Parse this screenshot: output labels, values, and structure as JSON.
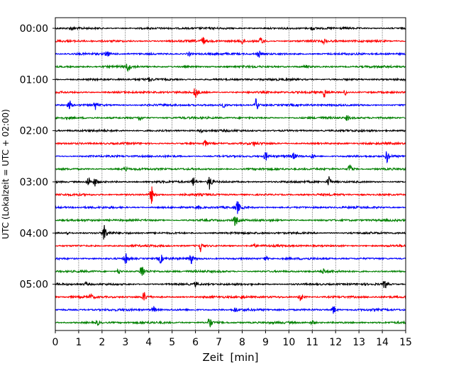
{
  "chart_data": {
    "type": "line",
    "title": "",
    "xlabel": "Zeit  [min]",
    "ylabel": "UTC (Lokalzeit = UTC + 02:00)",
    "xlim": [
      0,
      15
    ],
    "x_ticks": [
      "0",
      "1",
      "2",
      "3",
      "4",
      "5",
      "6",
      "7",
      "8",
      "9",
      "10",
      "11",
      "12",
      "13",
      "14",
      "15"
    ],
    "y_ticks": [
      "00:00",
      "01:00",
      "02:00",
      "03:00",
      "04:00",
      "05:00"
    ],
    "grid": "vertical dotted",
    "trace_interval_min": 15,
    "row_colors": [
      "#000000",
      "#ff0000",
      "#0000ff",
      "#008000"
    ],
    "series": [
      {
        "start": "00:00",
        "events": [
          [
            0.7,
            0.3
          ],
          [
            11.0,
            0.3
          ]
        ]
      },
      {
        "start": "00:15",
        "events": [
          [
            6.3,
            0.9
          ],
          [
            8.8,
            0.8
          ],
          [
            8.0,
            0.5
          ],
          [
            11.5,
            0.4
          ]
        ]
      },
      {
        "start": "00:30",
        "events": [
          [
            2.2,
            0.6
          ],
          [
            8.7,
            0.6
          ],
          [
            5.7,
            0.4
          ]
        ]
      },
      {
        "start": "00:45",
        "events": [
          [
            3.1,
            0.9
          ],
          [
            10.7,
            0.3
          ]
        ]
      },
      {
        "start": "01:00",
        "events": [
          [
            4.0,
            0.3
          ]
        ]
      },
      {
        "start": "01:15",
        "events": [
          [
            6.0,
            1.2
          ],
          [
            11.5,
            1.0
          ],
          [
            12.4,
            0.5
          ]
        ]
      },
      {
        "start": "01:30",
        "events": [
          [
            0.6,
            0.7
          ],
          [
            1.7,
            0.7
          ],
          [
            8.6,
            1.3
          ],
          [
            7.2,
            0.3
          ]
        ]
      },
      {
        "start": "01:45",
        "events": [
          [
            3.6,
            0.5
          ],
          [
            12.5,
            0.5
          ]
        ]
      },
      {
        "start": "02:00",
        "events": [
          [
            6.2,
            0.3
          ]
        ]
      },
      {
        "start": "02:15",
        "events": [
          [
            6.4,
            0.5
          ],
          [
            8.5,
            0.3
          ]
        ]
      },
      {
        "start": "02:30",
        "events": [
          [
            9.0,
            0.8
          ],
          [
            10.2,
            0.6
          ],
          [
            14.2,
            1.2
          ],
          [
            11.0,
            0.4
          ]
        ]
      },
      {
        "start": "02:45",
        "events": [
          [
            12.6,
            1.0
          ],
          [
            3.0,
            0.3
          ]
        ]
      },
      {
        "start": "03:00",
        "events": [
          [
            1.4,
            1.0
          ],
          [
            1.7,
            0.8
          ],
          [
            5.9,
            0.9
          ],
          [
            6.6,
            1.6
          ],
          [
            11.7,
            0.9
          ]
        ]
      },
      {
        "start": "03:15",
        "events": [
          [
            4.1,
            1.5
          ]
        ]
      },
      {
        "start": "03:30",
        "events": [
          [
            7.8,
            1.2
          ],
          [
            6.1,
            0.3
          ]
        ]
      },
      {
        "start": "03:45",
        "events": [
          [
            7.7,
            1.1
          ]
        ]
      },
      {
        "start": "04:00",
        "events": [
          [
            2.1,
            1.6
          ],
          [
            0.5,
            0.3
          ]
        ]
      },
      {
        "start": "04:15",
        "events": [
          [
            6.2,
            0.9
          ],
          [
            8.5,
            0.3
          ]
        ]
      },
      {
        "start": "04:30",
        "events": [
          [
            3.0,
            1.1
          ],
          [
            4.5,
            0.8
          ],
          [
            5.8,
            0.9
          ],
          [
            9.0,
            0.4
          ]
        ]
      },
      {
        "start": "04:45",
        "events": [
          [
            3.7,
            1.6
          ],
          [
            2.7,
            0.5
          ],
          [
            11.5,
            0.5
          ]
        ]
      },
      {
        "start": "05:00",
        "events": [
          [
            14.1,
            0.8
          ],
          [
            1.3,
            0.3
          ],
          [
            6.0,
            0.4
          ]
        ]
      },
      {
        "start": "05:15",
        "events": [
          [
            3.8,
            0.9
          ],
          [
            10.5,
            0.9
          ],
          [
            1.5,
            0.5
          ],
          [
            8.0,
            0.4
          ]
        ]
      },
      {
        "start": "05:30",
        "events": [
          [
            11.9,
            0.9
          ],
          [
            4.2,
            0.6
          ],
          [
            7.7,
            0.4
          ]
        ]
      },
      {
        "start": "05:45",
        "events": [
          [
            6.6,
            1.2
          ],
          [
            1.8,
            0.4
          ],
          [
            11.0,
            0.4
          ]
        ]
      }
    ]
  }
}
